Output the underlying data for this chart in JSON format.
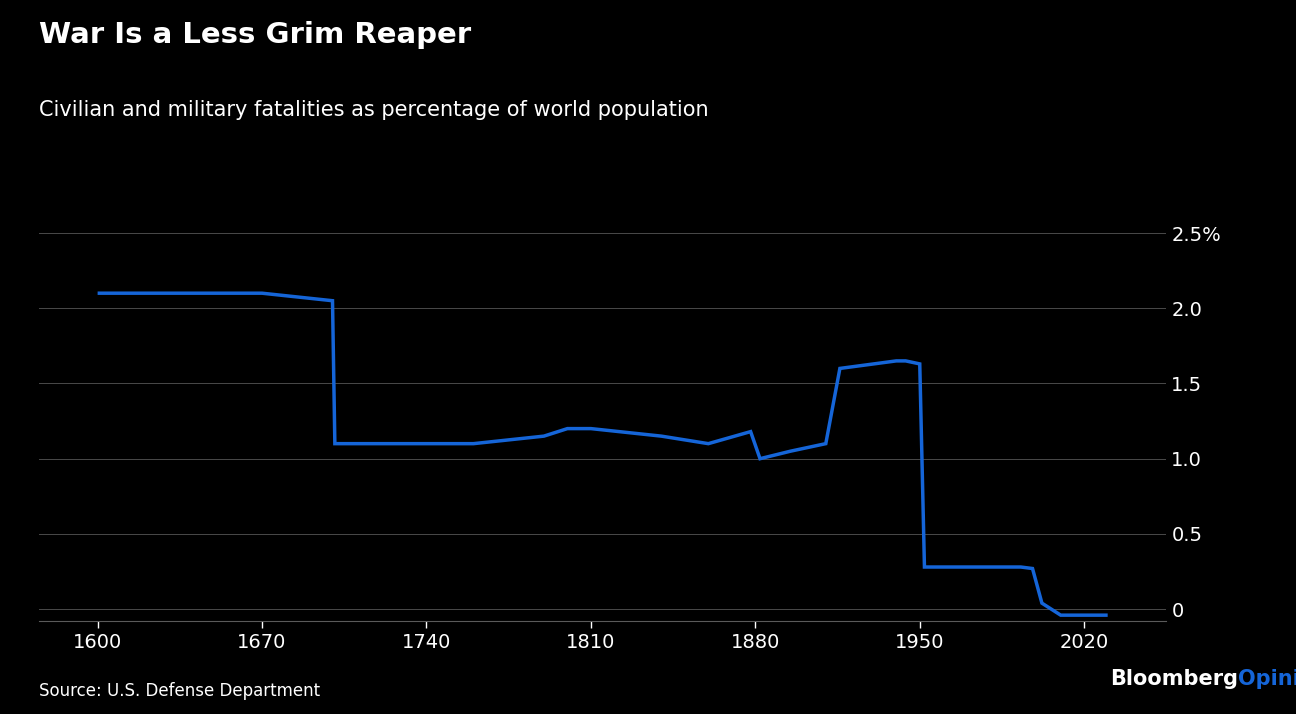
{
  "title": "War Is a Less Grim Reaper",
  "subtitle": "Civilian and military fatalities as percentage of world population",
  "source": "Source: U.S. Defense Department",
  "watermark_black": "Bloomberg",
  "watermark_blue": "Opinion",
  "background_color": "#000000",
  "text_color": "#ffffff",
  "line_color": "#1565d8",
  "grid_color": "#4a4a4a",
  "axis_color": "#5a5a5a",
  "x_ticks": [
    1600,
    1670,
    1740,
    1810,
    1880,
    1950,
    2020
  ],
  "y_ticks": [
    0,
    0.5,
    1.0,
    1.5,
    2.0,
    2.5
  ],
  "y_tick_labels": [
    "0",
    "0.5",
    "1.0",
    "1.5",
    "2.0",
    "2.5%"
  ],
  "xlim": [
    1575,
    2055
  ],
  "ylim": [
    -0.08,
    2.72
  ],
  "x_data": [
    1600,
    1660,
    1670,
    1700,
    1701,
    1760,
    1790,
    1800,
    1810,
    1840,
    1860,
    1878,
    1882,
    1895,
    1910,
    1916,
    1940,
    1943,
    1944,
    1950,
    1952,
    1955,
    1988,
    1993,
    1998,
    2002,
    2010,
    2030
  ],
  "y_data": [
    2.1,
    2.1,
    2.1,
    2.05,
    1.1,
    1.1,
    1.15,
    1.2,
    1.2,
    1.15,
    1.1,
    1.18,
    1.0,
    1.05,
    1.1,
    1.6,
    1.65,
    1.65,
    1.65,
    1.63,
    0.28,
    0.28,
    0.28,
    0.28,
    0.27,
    0.04,
    -0.04,
    -0.04
  ],
  "line_width": 2.5,
  "title_fontsize": 21,
  "subtitle_fontsize": 15,
  "tick_fontsize": 14,
  "source_fontsize": 12,
  "watermark_fontsize": 15
}
